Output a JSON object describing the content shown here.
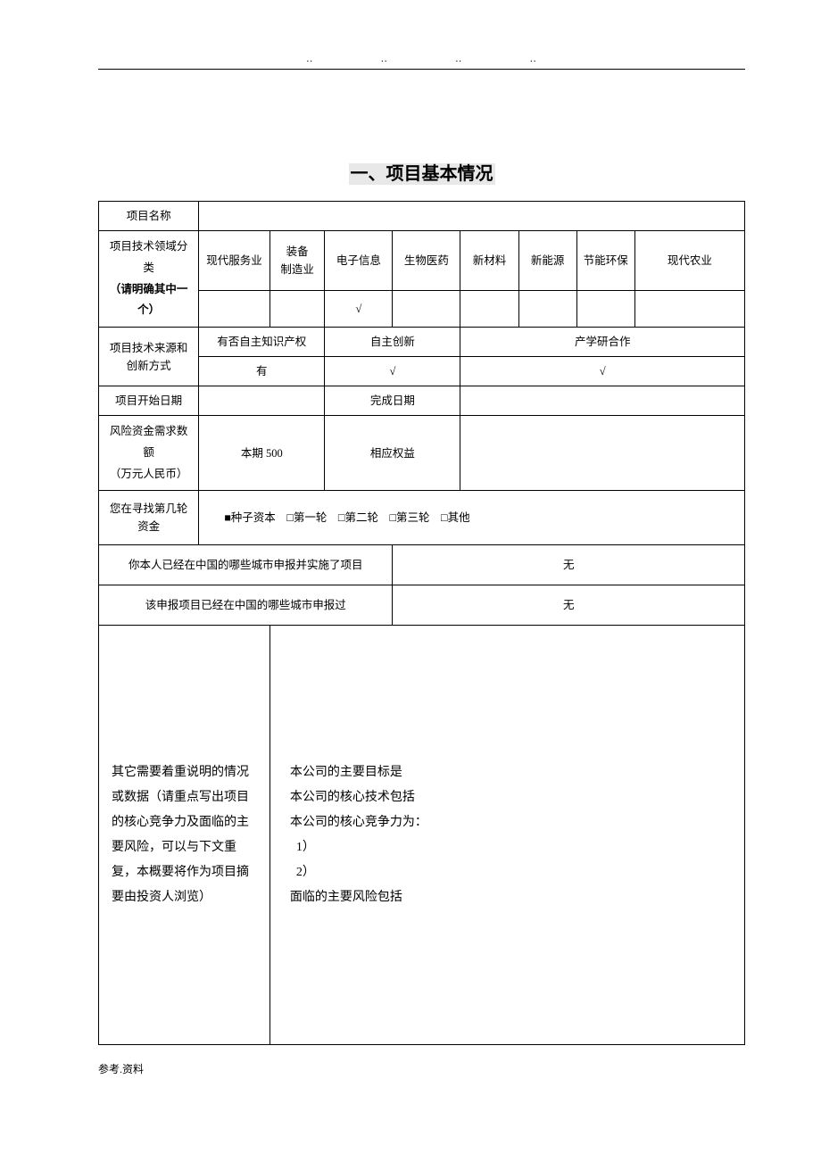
{
  "topDots": [
    "..",
    "..",
    "..",
    ".."
  ],
  "title": "一、项目基本情况",
  "rows": {
    "projectName": {
      "label": "项目名称",
      "value": ""
    },
    "techField": {
      "label": "项目技术领域分类",
      "note": "（请明确其中一个）",
      "options": [
        "现代服务业",
        "装备\n制造业",
        "电子信息",
        "生物医药",
        "新材料",
        "新能源",
        "节能环保",
        "现代农业"
      ],
      "checks": [
        "",
        "",
        "√",
        "",
        "",
        "",
        "",
        ""
      ]
    },
    "techSource": {
      "label": "项目技术来源和创新方式",
      "headers": [
        "有否自主知识产权",
        "自主创新",
        "产学研合作"
      ],
      "values": [
        "有",
        "√",
        "√"
      ]
    },
    "dates": {
      "startLabel": "项目开始日期",
      "startValue": "",
      "endLabel": "完成日期",
      "endValue": ""
    },
    "risk": {
      "label": "风险资金需求数额\n（万元人民币）",
      "col1": "本期 500",
      "col2Label": "相应权益",
      "col2Value": ""
    },
    "round": {
      "label": "您在寻找第几轮资金",
      "options": [
        {
          "box": "■",
          "text": "种子资本"
        },
        {
          "box": "□",
          "text": "第一轮"
        },
        {
          "box": "□",
          "text": "第二轮"
        },
        {
          "box": "□",
          "text": "第三轮"
        },
        {
          "box": "□",
          "text": "其他"
        }
      ]
    },
    "reportedCities": {
      "label": "你本人已经在中国的哪些城市申报并实施了项目",
      "value": "无"
    },
    "declaredCities": {
      "label": "该申报项目已经在中国的哪些城市申报过",
      "value": "无"
    },
    "otherInfo": {
      "label": "其它需要着重说明的情况或数据（请重点写出项目的核心竞争力及面临的主要风险，可以与下文重复，本概要将作为项目摘要由投资人浏览）",
      "lines": [
        "本公司的主要目标是",
        "本公司的核心技术包括",
        "本公司的核心竞争力为：",
        "  1）",
        "  2）",
        "面临的主要风险包括"
      ]
    }
  },
  "footer": "参考.资料"
}
